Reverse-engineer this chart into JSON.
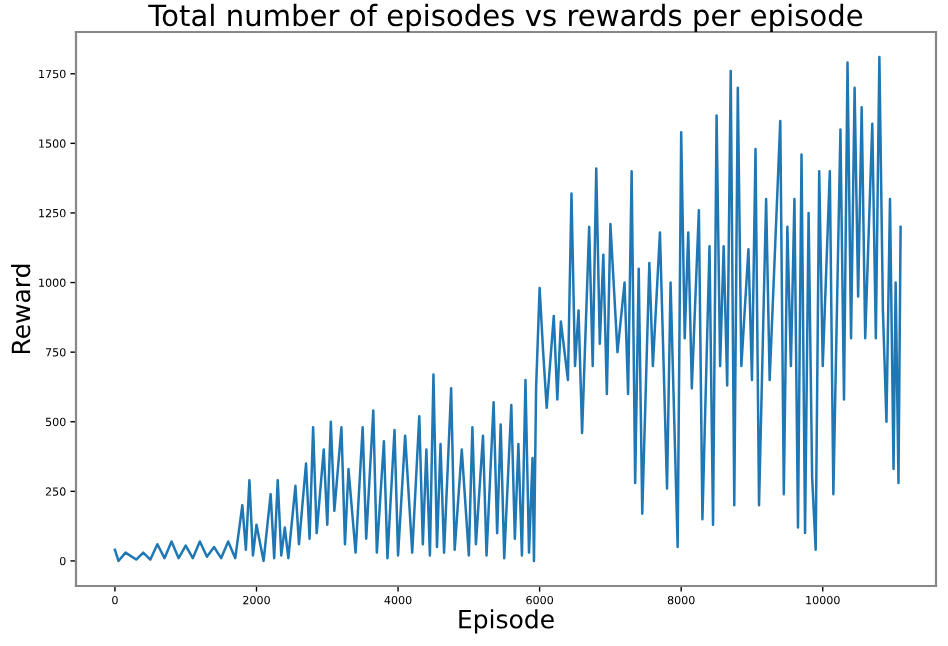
{
  "chart_data": {
    "type": "line",
    "title": "Total number of episodes vs rewards per episode",
    "xlabel": "Episode",
    "ylabel": "Reward",
    "series": [
      {
        "color": "#1f77b4",
        "x": [
          0,
          50,
          150,
          300,
          400,
          500,
          600,
          700,
          800,
          900,
          1000,
          1100,
          1200,
          1300,
          1400,
          1500,
          1600,
          1700,
          1800,
          1850,
          1900,
          1950,
          2000,
          2100,
          2200,
          2250,
          2300,
          2350,
          2400,
          2450,
          2550,
          2600,
          2700,
          2750,
          2800,
          2850,
          2950,
          3000,
          3050,
          3100,
          3200,
          3250,
          3300,
          3400,
          3500,
          3550,
          3650,
          3700,
          3800,
          3850,
          3950,
          4000,
          4100,
          4200,
          4300,
          4350,
          4400,
          4450,
          4500,
          4550,
          4600,
          4650,
          4750,
          4800,
          4900,
          5000,
          5050,
          5100,
          5200,
          5250,
          5350,
          5400,
          5450,
          5500,
          5600,
          5650,
          5700,
          5750,
          5800,
          5850,
          5900,
          5920,
          5950,
          6000,
          6050,
          6100,
          6200,
          6250,
          6300,
          6400,
          6450,
          6500,
          6550,
          6600,
          6700,
          6750,
          6800,
          6850,
          6900,
          6950,
          7000,
          7100,
          7200,
          7250,
          7300,
          7350,
          7400,
          7450,
          7550,
          7600,
          7700,
          7800,
          7850,
          7950,
          8000,
          8050,
          8100,
          8150,
          8250,
          8300,
          8400,
          8450,
          8500,
          8550,
          8600,
          8650,
          8700,
          8750,
          8800,
          8850,
          8950,
          9000,
          9050,
          9100,
          9200,
          9250,
          9400,
          9450,
          9500,
          9550,
          9600,
          9650,
          9700,
          9750,
          9800,
          9850,
          9900,
          9950,
          10000,
          10100,
          10150,
          10250,
          10300,
          10350,
          10400,
          10450,
          10500,
          10550,
          10600,
          10700,
          10750,
          10800,
          10850,
          10900,
          10950,
          11000,
          11030,
          11070,
          11100
        ],
        "values": [
          40,
          0,
          30,
          5,
          30,
          5,
          60,
          10,
          70,
          10,
          55,
          10,
          70,
          15,
          50,
          10,
          70,
          10,
          200,
          40,
          290,
          20,
          130,
          0,
          240,
          10,
          290,
          20,
          120,
          10,
          270,
          60,
          350,
          80,
          480,
          100,
          400,
          130,
          500,
          180,
          480,
          60,
          330,
          30,
          480,
          80,
          540,
          30,
          430,
          10,
          470,
          20,
          450,
          30,
          520,
          60,
          400,
          20,
          670,
          50,
          420,
          30,
          620,
          40,
          400,
          20,
          480,
          60,
          450,
          20,
          570,
          100,
          490,
          10,
          560,
          80,
          420,
          20,
          650,
          30,
          370,
          0,
          620,
          980,
          750,
          550,
          880,
          580,
          860,
          650,
          1320,
          700,
          900,
          460,
          1200,
          700,
          1410,
          780,
          1100,
          600,
          1210,
          750,
          1000,
          600,
          1400,
          280,
          1050,
          170,
          1070,
          700,
          1180,
          260,
          1000,
          50,
          1540,
          800,
          1180,
          620,
          1260,
          150,
          1130,
          130,
          1600,
          700,
          1130,
          630,
          1760,
          200,
          1700,
          700,
          1120,
          650,
          1480,
          200,
          1300,
          650,
          1580,
          240,
          1200,
          700,
          1300,
          120,
          1460,
          100,
          1250,
          300,
          40,
          1400,
          700,
          1400,
          240,
          1550,
          580,
          1790,
          800,
          1700,
          950,
          1630,
          800,
          1570,
          800,
          1810,
          900,
          500,
          1300,
          330,
          1000,
          280,
          1200
        ]
      }
    ],
    "xlim": [
      -550,
      11600
    ],
    "ylim": [
      -90,
      1900
    ],
    "xticks": [
      0,
      2000,
      4000,
      6000,
      8000,
      10000
    ],
    "yticks": [
      0,
      250,
      500,
      750,
      1000,
      1250,
      1500,
      1750
    ]
  }
}
